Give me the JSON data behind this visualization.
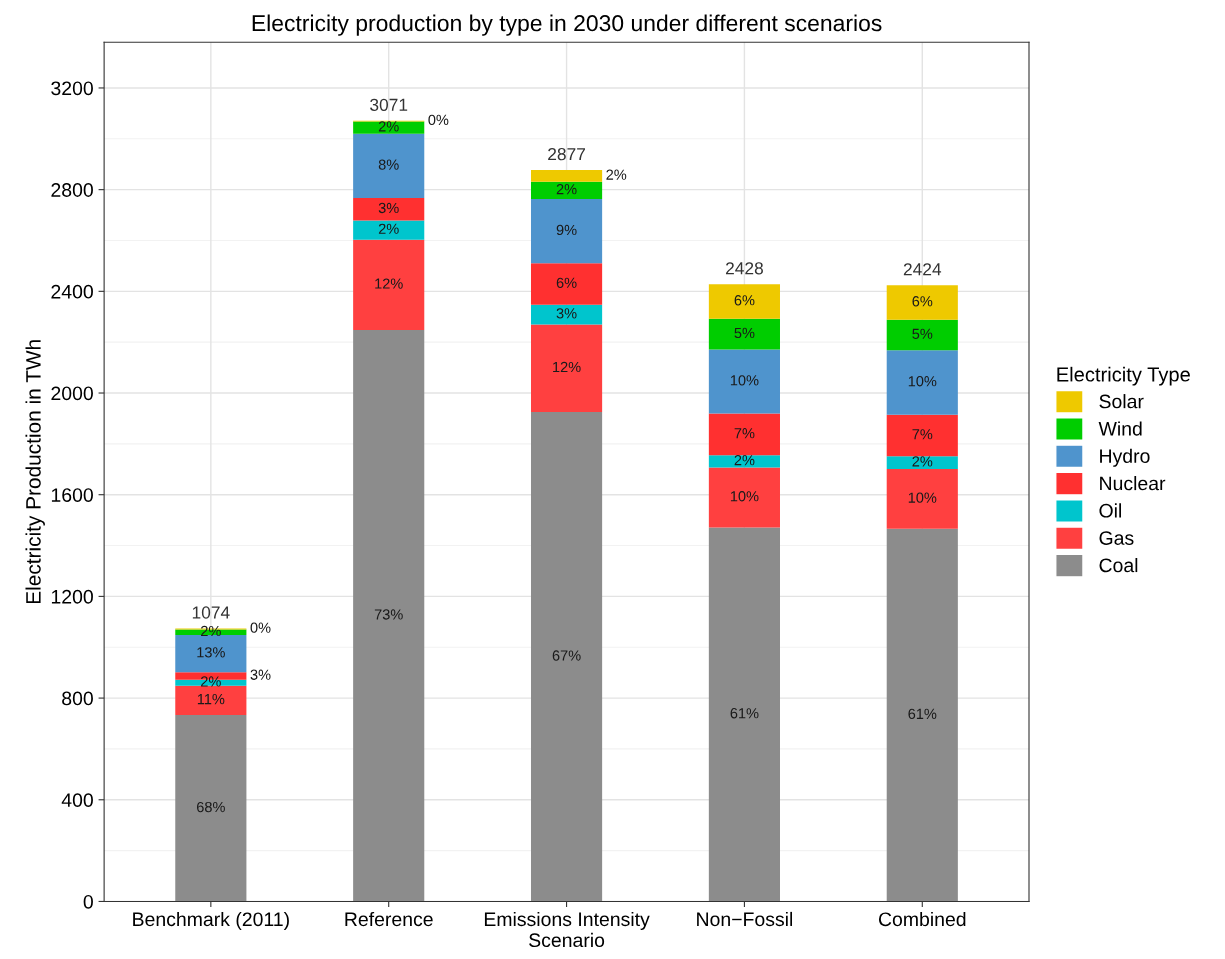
{
  "chart_data": {
    "type": "bar",
    "stacked": true,
    "title": "Electricity production by type in 2030 under different scenarios",
    "ylabel": "Electricity Production in TWh",
    "legend_title": "Electricity Type",
    "legend": "right",
    "grid": true,
    "categories": [
      "Benchmark (2011)",
      "Reference",
      "Emissions Intensity\nScenario",
      "Non−Fossil",
      "Combined"
    ],
    "ylim": [
      0,
      3380
    ],
    "yticks": [
      0,
      400,
      800,
      1200,
      1600,
      2000,
      2400,
      2800,
      3200
    ],
    "series": [
      {
        "name": "Coal",
        "color": "#8c8c8c",
        "values": [
          733,
          2248,
          1925,
          1471,
          1466
        ]
      },
      {
        "name": "Gas",
        "color": "#ff4040",
        "values": [
          116,
          355,
          345,
          236,
          235
        ]
      },
      {
        "name": "Oil",
        "color": "#00c5cd",
        "values": [
          23,
          76,
          77,
          48,
          50
        ]
      },
      {
        "name": "Nuclear",
        "color": "#ff3030",
        "values": [
          30,
          88,
          163,
          164,
          164
        ]
      },
      {
        "name": "Hydro",
        "color": "#4f94cd",
        "values": [
          146,
          253,
          253,
          252,
          253
        ]
      },
      {
        "name": "Wind",
        "color": "#00cd00",
        "values": [
          22,
          48,
          68,
          121,
          120
        ]
      },
      {
        "name": "Solar",
        "color": "#eec900",
        "values": [
          4,
          3,
          46,
          136,
          136
        ]
      }
    ],
    "totals": [
      "1074",
      "3071",
      "2877",
      "2428",
      "2424"
    ],
    "annotations": [
      "68%",
      {
        "text": "11%",
        "x": "Benchmark (2011)",
        "y": 849
      },
      {
        "text": "2%",
        "x": "Benchmark (2011)",
        "y": 872
      },
      {
        "text": "3%",
        "x": "Benchmark (2011)",
        "y": 902
      },
      {
        "text": "13%",
        "x": "Benchmark (2011)",
        "y": 1048
      },
      {
        "text": "2%",
        "x": "Benchmark (2011)",
        "y": 1070
      },
      {
        "text": "0%",
        "x": "Benchmark (2011)",
        "y": 1074
      },
      "73%",
      {
        "text": "12%",
        "x": "Reference",
        "y": 2603
      },
      {
        "text": "2%",
        "x": "Reference",
        "y": 2679
      },
      {
        "text": "3%",
        "x": "Reference",
        "y": 2767
      },
      {
        "text": "8%",
        "x": "Reference",
        "y": 3020
      },
      {
        "text": "2%",
        "x": "Reference",
        "y": 3068
      },
      {
        "text": "0%",
        "x": "Reference",
        "y": 3071
      },
      "67%",
      {
        "text": "12%",
        "x": "Emissions Intensity\nScenario",
        "y": 2270
      },
      {
        "text": "3%",
        "x": "Emissions Intensity\nScenario",
        "y": 2347
      },
      {
        "text": "6%",
        "x": "Emissions Intensity\nScenario",
        "y": 2510
      },
      {
        "text": "9%",
        "x": "Emissions Intensity\nScenario",
        "y": 2763
      },
      {
        "text": "2%",
        "x": "Emissions Intensity\nScenario",
        "y": 2831
      },
      {
        "text": "2%",
        "x": "Emissions Intensity\nScenario",
        "y": 2877
      },
      "61%",
      {
        "text": "10%",
        "x": "Non−Fossil",
        "y": 1707
      },
      {
        "text": "2%",
        "x": "Non−Fossil",
        "y": 1755
      },
      {
        "text": "7%",
        "x": "Non−Fossil",
        "y": 1919
      },
      {
        "text": "10%",
        "x": "Non−Fossil",
        "y": 2171
      },
      {
        "text": "5%",
        "x": "Non−Fossil",
        "y": 2292
      },
      {
        "text": "6%",
        "x": "Non−Fossil",
        "y": 2428
      },
      "61%",
      {
        "text": "10%",
        "x": "Combined",
        "y": 1701
      },
      {
        "text": "2%",
        "x": "Combined",
        "y": 1751
      },
      {
        "text": "7%",
        "x": "Combined",
        "y": 1915
      },
      {
        "text": "10%",
        "x": "Combined",
        "y": 2168
      },
      {
        "text": "5%",
        "x": "Combined",
        "y": 2288
      },
      {
        "text": "6%",
        "x": "Combined",
        "y": 2424
      }
    ]
  }
}
